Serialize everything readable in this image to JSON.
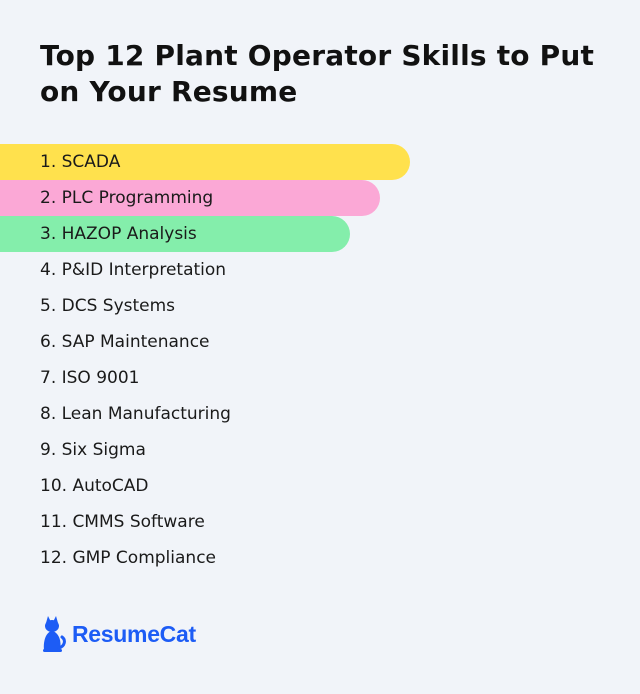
{
  "title": "Top 12 Plant Operator Skills to Put on Your Resume",
  "skills": [
    {
      "label": "1. SCADA",
      "highlight": "#ffe14d"
    },
    {
      "label": "2. PLC Programming",
      "highlight": "#fba8d6"
    },
    {
      "label": "3. HAZOP Analysis",
      "highlight": "#84eeab"
    },
    {
      "label": "4. P&ID Interpretation"
    },
    {
      "label": "5. DCS Systems"
    },
    {
      "label": "6. SAP Maintenance"
    },
    {
      "label": "7. ISO 9001"
    },
    {
      "label": "8. Lean Manufacturing"
    },
    {
      "label": "9. Six Sigma"
    },
    {
      "label": "10. AutoCAD"
    },
    {
      "label": "11. CMMS Software"
    },
    {
      "label": "12. GMP Compliance"
    }
  ],
  "brand": {
    "name": "ResumeCat",
    "icon": "cat-icon",
    "color": "#1d5cf5"
  }
}
